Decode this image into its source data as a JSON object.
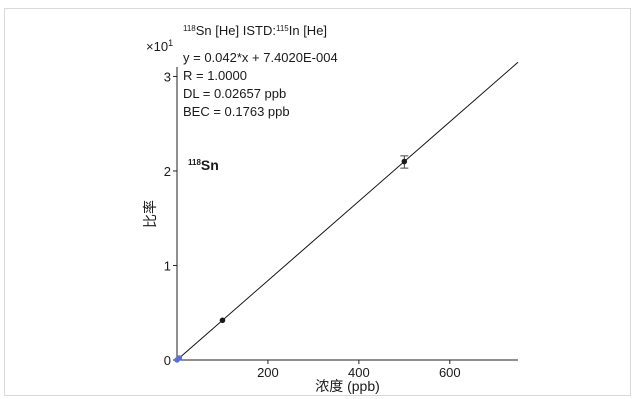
{
  "chart_data": {
    "type": "scatter",
    "title": "Sn [He] ISTD: In [He]",
    "title_parts": {
      "analyte_mass": "118",
      "analyte": "Sn [He] ISTD:",
      "istd_mass": "115",
      "istd": "In [He]"
    },
    "annotations": {
      "equation": "y = 0.042*x + 7.4020E-004",
      "r": "R = 1.0000",
      "dl": "DL = 0.02657 ppb",
      "bec": "BEC = 0.1763 ppb"
    },
    "element_label": {
      "mass": "118",
      "symbol": "Sn"
    },
    "y_multiplier": {
      "base": "×10",
      "exponent": "1"
    },
    "xlabel": "浓度 (ppb)",
    "ylabel": "比率",
    "xlim": [
      0,
      750
    ],
    "ylim": [
      0,
      3.1
    ],
    "x_ticks": [
      200,
      400,
      600
    ],
    "y_ticks": [
      0,
      1,
      2,
      3
    ],
    "points": [
      {
        "x": 0,
        "y": 0.0007,
        "color": "#5b6fd6"
      },
      {
        "x": 5,
        "y": 0.021,
        "color": "#5b6fd6"
      },
      {
        "x": 100,
        "y": 0.42,
        "color": "#1a1a1a"
      },
      {
        "x": 500,
        "y": 2.1,
        "color": "#1a1a1a",
        "error": [
          2.03,
          2.16
        ]
      }
    ],
    "fit": {
      "slope": 0.0042,
      "intercept": 7.4e-05,
      "x_range": [
        0,
        750
      ]
    },
    "grid": false,
    "legend": "none"
  }
}
